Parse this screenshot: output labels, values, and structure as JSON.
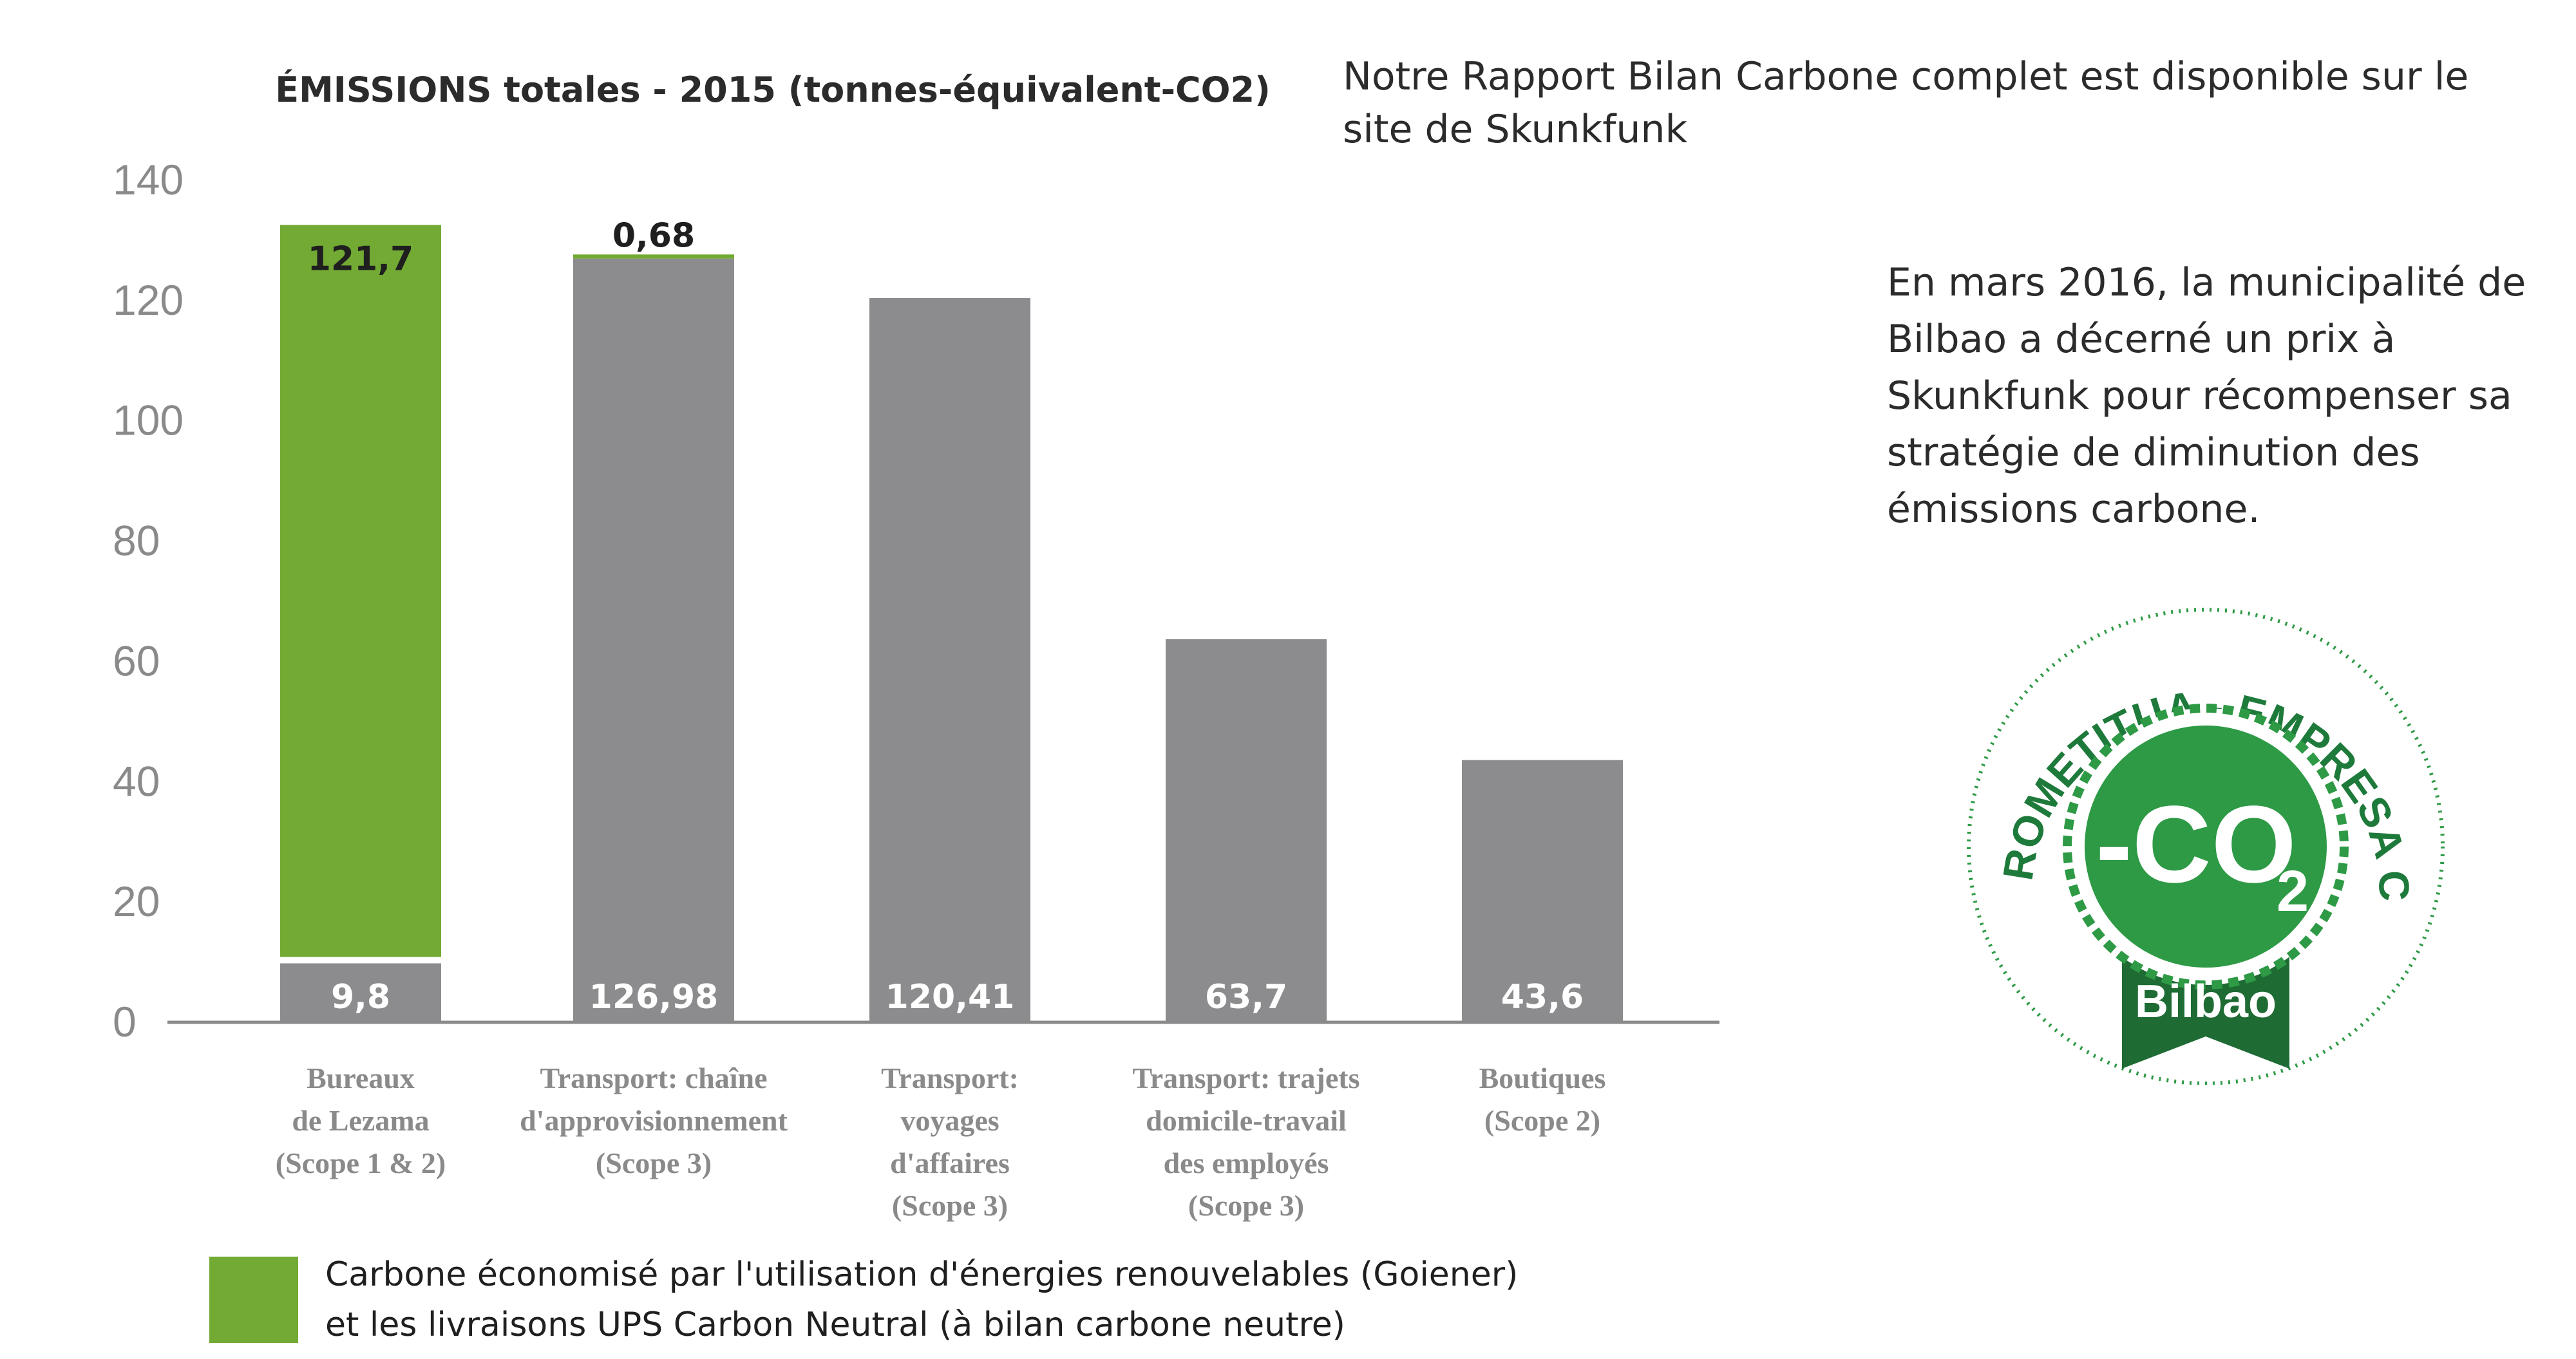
{
  "side": {
    "report_note": "Notre Rapport Bilan Carbone complet est disponible sur le site de Skunkfunk",
    "award_note": "En mars 2016, la municipalité de Bilbao a décerné un prix à Skunkfunk pour récompenser sa stratégie de diminution des émissions carbone."
  },
  "badge": {
    "ring_text": "EMPRESA KONPROMETITUA - EMPRESA COMPROMETIDA",
    "symbol": "-CO",
    "subscript": "2",
    "city": "Bilbao",
    "colors": {
      "dark_green": "#1e6b34",
      "light_green": "#2e9a45"
    }
  },
  "chart_data": {
    "type": "bar",
    "stacked": true,
    "title": "ÉMISSIONS totales - 2015 (tonnes-équivalent-CO2)",
    "ylim": [
      0,
      140
    ],
    "yticks": [
      "0",
      "20",
      "40",
      "60",
      "80",
      "100",
      "120",
      "140"
    ],
    "categories": [
      [
        "Bureaux",
        "de Lezama",
        "(Scope 1 & 2)"
      ],
      [
        "Transport: chaîne",
        "d'approvisionnement",
        "(Scope 3)"
      ],
      [
        "Transport:",
        "voyages",
        "d'affaires",
        "(Scope 3)"
      ],
      [
        "Transport: trajets",
        "domicile-travail",
        "des employés",
        "(Scope 3)"
      ],
      [
        "Boutiques",
        "(Scope 2)"
      ]
    ],
    "series": [
      {
        "values": [
          9.8,
          126.98,
          120.41,
          63.7,
          43.6
        ],
        "labels": [
          "9,8",
          "126,98",
          "120,41",
          "63,7",
          "43,6"
        ],
        "color": "#8c8c8e"
      },
      {
        "name": "Carbone économisé par l'utilisation d'énergies renouvelables (Goiener) et les livraisons UPS Carbon Neutral (à bilan carbone neutre)",
        "values": [
          121.7,
          0.68,
          0,
          0,
          0
        ],
        "labels": [
          "121,7",
          "0,68",
          "",
          "",
          ""
        ],
        "color": "#72aa34"
      }
    ],
    "legend": {
      "line1": "Carbone économisé par l'utilisation d'énergies renouvelables (Goiener)",
      "line2": "et les livraisons UPS Carbon Neutral (à bilan carbone neutre)"
    }
  }
}
